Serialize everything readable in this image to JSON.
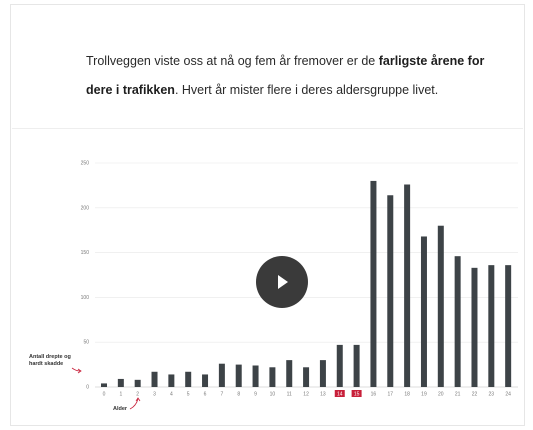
{
  "intro": {
    "part1": "Trollveggen viste oss at nå og fem år fremover er de ",
    "bold": "farligste årene for dere i trafikken",
    "part2": ". Hvert år mister flere i deres aldersgruppe livet."
  },
  "play": {
    "icon": "play-icon"
  },
  "colors": {
    "bar": "#3d4347",
    "highlight": "#c8203a",
    "grid": "#e8e8e8",
    "axis": "#bbbbbb"
  },
  "chart_data": {
    "type": "bar",
    "categories": [
      "0",
      "1",
      "2",
      "3",
      "4",
      "5",
      "6",
      "7",
      "8",
      "9",
      "10",
      "11",
      "12",
      "13",
      "14",
      "15",
      "16",
      "17",
      "18",
      "19",
      "20",
      "21",
      "22",
      "23",
      "24"
    ],
    "values": [
      4,
      9,
      8,
      17,
      14,
      17,
      14,
      26,
      25,
      24,
      22,
      30,
      22,
      30,
      47,
      47,
      230,
      214,
      226,
      168,
      180,
      146,
      133,
      136,
      136
    ],
    "highlighted_categories": [
      "14",
      "15"
    ],
    "yticks": [
      0,
      50,
      100,
      150,
      200,
      250
    ],
    "ylim": [
      0,
      250
    ],
    "ylabel": "Antall drepte og hardt skadde",
    "xlabel": "Alder",
    "grid": true
  }
}
